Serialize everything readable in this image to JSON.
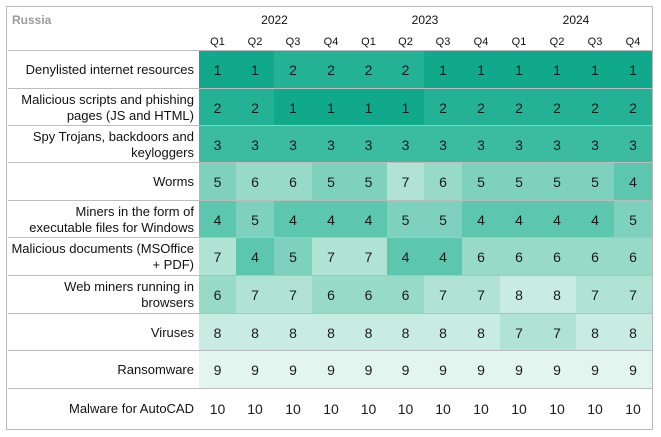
{
  "chart_data": {
    "type": "table",
    "title": "Russia",
    "years": [
      {
        "label": "2022",
        "span": 4
      },
      {
        "label": "2023",
        "span": 4
      },
      {
        "label": "2024",
        "span": 4
      }
    ],
    "quarters": [
      "Q1",
      "Q2",
      "Q3",
      "Q4",
      "Q1",
      "Q2",
      "Q3",
      "Q4",
      "Q1",
      "Q2",
      "Q3",
      "Q4"
    ],
    "rows": [
      {
        "label": "Denylisted internet resources",
        "values": [
          1,
          1,
          2,
          2,
          2,
          2,
          1,
          1,
          1,
          1,
          1,
          1
        ]
      },
      {
        "label": "Malicious scripts and phishing pages (JS and HTML)",
        "values": [
          2,
          2,
          1,
          1,
          1,
          1,
          2,
          2,
          2,
          2,
          2,
          2
        ]
      },
      {
        "label": "Spy Trojans, backdoors and keyloggers",
        "values": [
          3,
          3,
          3,
          3,
          3,
          3,
          3,
          3,
          3,
          3,
          3,
          3
        ]
      },
      {
        "label": "Worms",
        "values": [
          5,
          6,
          6,
          5,
          5,
          7,
          6,
          5,
          5,
          5,
          5,
          4
        ]
      },
      {
        "label": "Miners in the form of executable files for Windows",
        "values": [
          4,
          5,
          4,
          4,
          4,
          5,
          5,
          4,
          4,
          4,
          4,
          5
        ]
      },
      {
        "label": "Malicious documents (MSOffice + PDF)",
        "values": [
          7,
          4,
          5,
          7,
          7,
          4,
          4,
          6,
          6,
          6,
          6,
          6
        ]
      },
      {
        "label": "Web miners running in browsers",
        "values": [
          6,
          7,
          7,
          6,
          6,
          6,
          7,
          7,
          8,
          8,
          7,
          7
        ]
      },
      {
        "label": "Viruses",
        "values": [
          8,
          8,
          8,
          8,
          8,
          8,
          8,
          8,
          7,
          7,
          8,
          8
        ]
      },
      {
        "label": "Ransomware",
        "values": [
          9,
          9,
          9,
          9,
          9,
          9,
          9,
          9,
          9,
          9,
          9,
          9
        ]
      },
      {
        "label": "Malware for AutoCAD",
        "values": [
          10,
          10,
          10,
          10,
          10,
          10,
          10,
          10,
          10,
          10,
          10,
          10
        ]
      }
    ],
    "rank_colors": {
      "1": "#10a98b",
      "2": "#23b295",
      "3": "#3bbba0",
      "4": "#5cc6ae",
      "5": "#7ed1bc",
      "6": "#98dac8",
      "7": "#b1e3d5",
      "8": "#c9ece2",
      "9": "#e3f5ef",
      "10": "#ffffff"
    }
  }
}
